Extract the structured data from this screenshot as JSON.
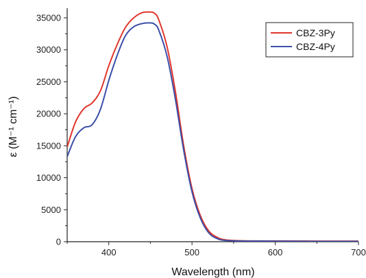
{
  "chart_data": {
    "type": "line",
    "xlabel": "Wavelength (nm)",
    "ylabel": "ε (M⁻¹ cm⁻¹)",
    "xlim": [
      350,
      700
    ],
    "ylim": [
      0,
      36500
    ],
    "x_ticks": [
      400,
      500,
      600,
      700
    ],
    "y_ticks": [
      0,
      5000,
      10000,
      15000,
      20000,
      25000,
      30000,
      35000
    ],
    "grid": false,
    "legend_position": "top-right",
    "series": [
      {
        "name": "CBZ-3Py",
        "color": "#e0352b",
        "points": [
          [
            350,
            14800
          ],
          [
            360,
            18700
          ],
          [
            370,
            20800
          ],
          [
            380,
            21700
          ],
          [
            390,
            23600
          ],
          [
            400,
            27500
          ],
          [
            410,
            30800
          ],
          [
            420,
            33500
          ],
          [
            430,
            35000
          ],
          [
            440,
            35800
          ],
          [
            450,
            35900
          ],
          [
            455,
            35700
          ],
          [
            460,
            34700
          ],
          [
            470,
            30500
          ],
          [
            480,
            23500
          ],
          [
            490,
            15000
          ],
          [
            500,
            8300
          ],
          [
            510,
            4100
          ],
          [
            520,
            1700
          ],
          [
            530,
            700
          ],
          [
            540,
            300
          ],
          [
            560,
            150
          ],
          [
            600,
            120
          ],
          [
            650,
            100
          ],
          [
            700,
            100
          ]
        ]
      },
      {
        "name": "CBZ-4Py",
        "color": "#3a4ea8",
        "points": [
          [
            350,
            13300
          ],
          [
            360,
            16400
          ],
          [
            370,
            17800
          ],
          [
            380,
            18300
          ],
          [
            390,
            20700
          ],
          [
            400,
            25200
          ],
          [
            410,
            29100
          ],
          [
            420,
            32200
          ],
          [
            430,
            33600
          ],
          [
            440,
            34100
          ],
          [
            450,
            34200
          ],
          [
            455,
            34000
          ],
          [
            460,
            33100
          ],
          [
            470,
            29000
          ],
          [
            480,
            22300
          ],
          [
            490,
            14300
          ],
          [
            500,
            7800
          ],
          [
            510,
            3700
          ],
          [
            520,
            1400
          ],
          [
            530,
            500
          ],
          [
            540,
            200
          ],
          [
            560,
            100
          ],
          [
            600,
            80
          ],
          [
            650,
            60
          ],
          [
            700,
            60
          ]
        ]
      }
    ]
  }
}
